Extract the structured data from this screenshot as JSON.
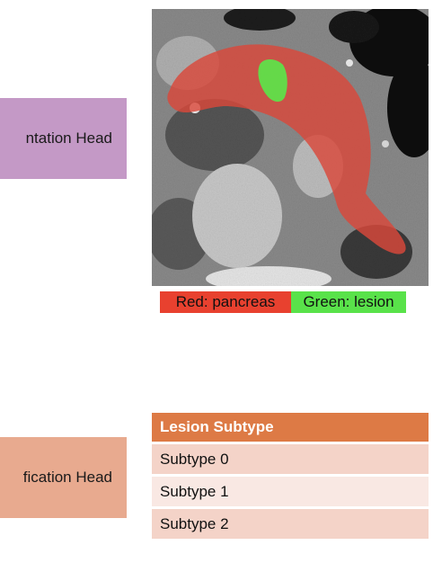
{
  "segmentation_head": {
    "label": "ntation Head"
  },
  "classification_head": {
    "label": "fication Head"
  },
  "legend": {
    "red_label": "Red: pancreas",
    "green_label": "Green: lesion",
    "red_color": "#e8412f",
    "green_color": "#59e24a"
  },
  "subtype_table": {
    "header": "Lesion Subtype",
    "rows": [
      "Subtype 0",
      "Subtype 1",
      "Subtype 2"
    ],
    "header_color": "#dd7a45"
  },
  "colors": {
    "segmentation_head": "#c499c6",
    "classification_head": "#e8aa8f"
  }
}
